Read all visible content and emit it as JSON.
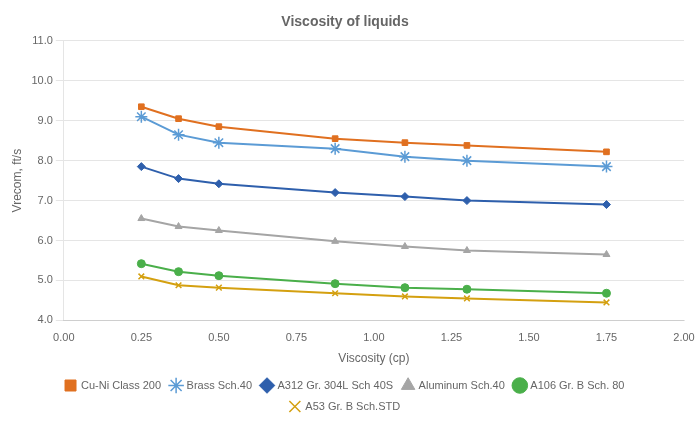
{
  "chart_data": {
    "type": "line",
    "title": "Viscosity of liquids",
    "x_label": "Viscosity (cp)",
    "y_label": "Vrecom, ft/s",
    "xlim": [
      0.0,
      2.0
    ],
    "ylim": [
      4.0,
      11.0
    ],
    "xticks": [
      {
        "value": 0.0,
        "label": "0.00"
      },
      0.25,
      {
        "value": 0.5,
        "label": "0.50"
      },
      0.75,
      {
        "value": 1.0,
        "label": "1.00"
      },
      1.25,
      {
        "value": 1.5,
        "label": "1.50"
      },
      1.75,
      {
        "value": 2.0,
        "label": "2.00"
      }
    ],
    "yticks": [
      {
        "value": 4.0,
        "label": "4.0"
      },
      {
        "value": 5.0,
        "label": "5.0"
      },
      {
        "value": 6.0,
        "label": "6.0"
      },
      {
        "value": 7.0,
        "label": "7.0"
      },
      {
        "value": 8.0,
        "label": "8.0"
      },
      {
        "value": 9.0,
        "label": "9.0"
      },
      {
        "value": 10.0,
        "label": "10.0"
      },
      {
        "value": 11.0,
        "label": "11.0"
      }
    ],
    "grid": "y",
    "legend": "bottom",
    "series": [
      {
        "name": "Cu-Ni Class 200",
        "color": "#E07020",
        "marker": "square",
        "x": [
          0.25,
          0.37,
          0.5,
          0.875,
          1.1,
          1.3,
          1.75
        ],
        "values": [
          9.35,
          9.05,
          8.85,
          8.55,
          8.45,
          8.38,
          8.22
        ]
      },
      {
        "name": "Brass Sch.40",
        "color": "#5B9BD5",
        "marker": "star",
        "x": [
          0.25,
          0.37,
          0.5,
          0.875,
          1.1,
          1.3,
          1.75
        ],
        "values": [
          9.1,
          8.65,
          8.45,
          8.3,
          8.1,
          8.0,
          7.85
        ]
      },
      {
        "name": "A312 Gr. 304L Sch 40S",
        "color": "#2E5FAC",
        "marker": "diamond",
        "x": [
          0.25,
          0.37,
          0.5,
          0.875,
          1.1,
          1.3,
          1.75
        ],
        "values": [
          7.85,
          7.55,
          7.42,
          7.2,
          7.1,
          7.0,
          6.9
        ]
      },
      {
        "name": "Aluminum Sch.40",
        "color": "#A5A5A5",
        "marker": "triangle",
        "x": [
          0.25,
          0.37,
          0.5,
          0.875,
          1.1,
          1.3,
          1.75
        ],
        "values": [
          6.55,
          6.35,
          6.25,
          5.98,
          5.85,
          5.75,
          5.65
        ]
      },
      {
        "name": "A106 Gr. B Sch. 80",
        "color": "#4AAF4A",
        "marker": "circle",
        "x": [
          0.25,
          0.37,
          0.5,
          0.875,
          1.1,
          1.3,
          1.75
        ],
        "values": [
          5.42,
          5.22,
          5.12,
          4.92,
          4.82,
          4.78,
          4.68
        ]
      },
      {
        "name": "A53 Gr. B Sch.STD",
        "color": "#D4A010",
        "marker": "x",
        "x": [
          0.25,
          0.37,
          0.5,
          0.875,
          1.1,
          1.3,
          1.75
        ],
        "values": [
          5.1,
          4.88,
          4.82,
          4.68,
          4.6,
          4.55,
          4.45
        ]
      }
    ]
  }
}
